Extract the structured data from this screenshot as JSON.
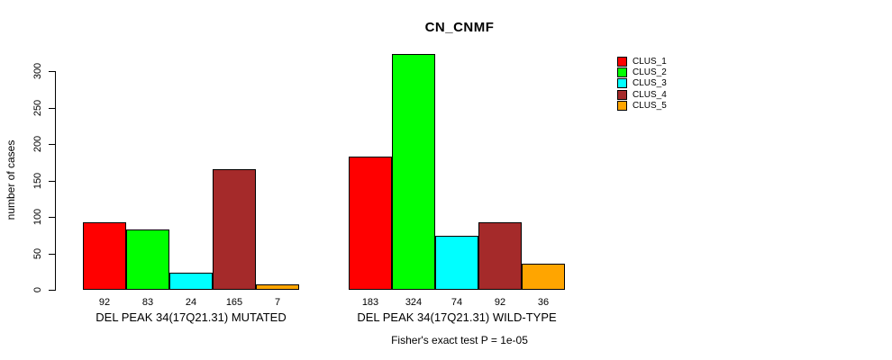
{
  "chart_data": {
    "type": "bar",
    "title": "CN_CNMF",
    "ylabel": "number of cases",
    "xlabel": "",
    "yticks": [
      0,
      50,
      100,
      150,
      200,
      250,
      300
    ],
    "ylim": [
      0,
      324
    ],
    "grid": false,
    "legend_position": "right",
    "bar_value_labels": true,
    "categories": [
      "DEL PEAK 34(17Q21.31) MUTATED",
      "DEL PEAK 34(17Q21.31) WILD-TYPE"
    ],
    "groups": [
      {
        "label": "DEL PEAK 34(17Q21.31) MUTATED",
        "values": [
          92,
          83,
          24,
          165,
          7
        ]
      },
      {
        "label": "DEL PEAK 34(17Q21.31) WILD-TYPE",
        "values": [
          183,
          324,
          74,
          92,
          36
        ]
      }
    ],
    "series": [
      {
        "name": "CLUS_1",
        "color": "#FF0000"
      },
      {
        "name": "CLUS_2",
        "color": "#00FF00"
      },
      {
        "name": "CLUS_3",
        "color": "#00FFFF"
      },
      {
        "name": "CLUS_4",
        "color": "#A52A2A"
      },
      {
        "name": "CLUS_5",
        "color": "#FFA500"
      }
    ],
    "caption": "Fisher's exact test P = 1e-05"
  }
}
